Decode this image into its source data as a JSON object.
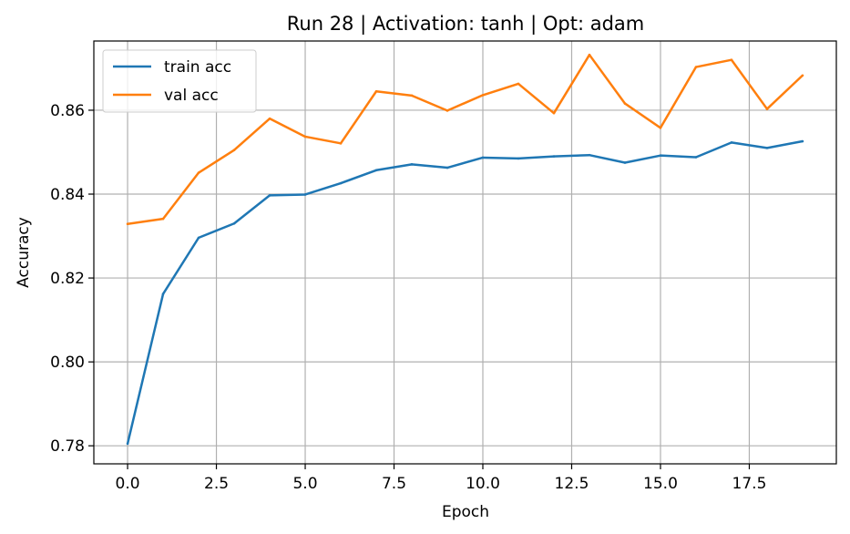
{
  "chart_data": {
    "type": "line",
    "title": "Run 28 | Activation: tanh | Opt: adam",
    "xlabel": "Epoch",
    "ylabel": "Accuracy",
    "x": [
      0,
      1,
      2,
      3,
      4,
      5,
      6,
      7,
      8,
      9,
      10,
      11,
      12,
      13,
      14,
      15,
      16,
      17,
      18,
      19
    ],
    "xlim": [
      -0.95,
      19.95
    ],
    "ylim": [
      0.7757,
      0.8765
    ],
    "xticks": [
      0.0,
      2.5,
      5.0,
      7.5,
      10.0,
      12.5,
      15.0,
      17.5
    ],
    "xtick_labels": [
      "0.0",
      "2.5",
      "5.0",
      "7.5",
      "10.0",
      "12.5",
      "15.0",
      "17.5"
    ],
    "yticks": [
      0.78,
      0.8,
      0.82,
      0.84,
      0.86
    ],
    "ytick_labels": [
      "0.78",
      "0.80",
      "0.82",
      "0.84",
      "0.86"
    ],
    "grid": true,
    "legend_position": "top-left",
    "series": [
      {
        "name": "train acc",
        "color": "#1f77b4",
        "values": [
          0.7805,
          0.8162,
          0.8296,
          0.833,
          0.8397,
          0.8399,
          0.8426,
          0.8457,
          0.8471,
          0.8463,
          0.8487,
          0.8485,
          0.849,
          0.8493,
          0.8475,
          0.8492,
          0.8488,
          0.8523,
          0.851,
          0.8526
        ]
      },
      {
        "name": "val acc",
        "color": "#ff7f0e",
        "values": [
          0.8329,
          0.8341,
          0.8451,
          0.8505,
          0.858,
          0.8537,
          0.8521,
          0.8645,
          0.8635,
          0.8599,
          0.8636,
          0.8663,
          0.8593,
          0.8732,
          0.8616,
          0.8558,
          0.8703,
          0.872,
          0.8603,
          0.8683
        ]
      }
    ]
  }
}
